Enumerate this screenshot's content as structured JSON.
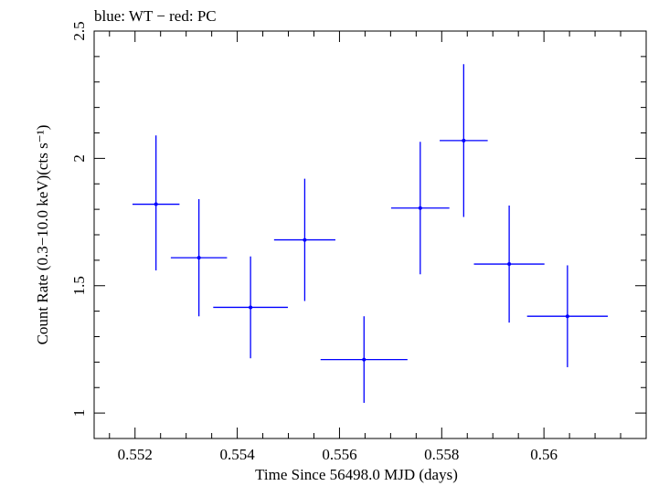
{
  "chart_data": {
    "type": "scatter",
    "title": "blue: WT − red: PC",
    "xlabel": "Time Since 56498.0 MJD (days)",
    "ylabel": "Count Rate (0.3−10.0 keV)(cts s⁻¹)",
    "xlim": [
      0.5512,
      0.562
    ],
    "ylim": [
      0.9,
      2.5
    ],
    "xticks": [
      {
        "value": 0.552,
        "label": "0.552"
      },
      {
        "value": 0.554,
        "label": "0.554"
      },
      {
        "value": 0.556,
        "label": "0.556"
      },
      {
        "value": 0.558,
        "label": "0.558"
      },
      {
        "value": 0.56,
        "label": "0.56"
      }
    ],
    "yticks": [
      {
        "value": 1.0,
        "label": "1"
      },
      {
        "value": 1.5,
        "label": "1.5"
      },
      {
        "value": 2.0,
        "label": "2"
      },
      {
        "value": 2.5,
        "label": "2.5"
      }
    ],
    "grid": false,
    "series": [
      {
        "color": "#0000ff",
        "points": [
          {
            "x": 0.55241,
            "y": 1.82,
            "xerr": 0.00046,
            "yerr_low": 0.26,
            "yerr_high": 0.27
          },
          {
            "x": 0.55325,
            "y": 1.61,
            "xerr": 0.00055,
            "yerr_low": 0.23,
            "yerr_high": 0.23
          },
          {
            "x": 0.55426,
            "y": 1.415,
            "xerr": 0.00073,
            "yerr_low": 0.2,
            "yerr_high": 0.2
          },
          {
            "x": 0.55532,
            "y": 1.68,
            "xerr": 0.0006,
            "yerr_low": 0.24,
            "yerr_high": 0.24
          },
          {
            "x": 0.55648,
            "y": 1.21,
            "xerr": 0.00085,
            "yerr_low": 0.17,
            "yerr_high": 0.17
          },
          {
            "x": 0.55758,
            "y": 1.805,
            "xerr": 0.00057,
            "yerr_low": 0.26,
            "yerr_high": 0.26
          },
          {
            "x": 0.55843,
            "y": 2.07,
            "xerr": 0.00047,
            "yerr_low": 0.3,
            "yerr_high": 0.3
          },
          {
            "x": 0.55932,
            "y": 1.585,
            "xerr": 0.00069,
            "yerr_low": 0.23,
            "yerr_high": 0.23
          },
          {
            "x": 0.56046,
            "y": 1.38,
            "xerr": 0.00079,
            "yerr_low": 0.2,
            "yerr_high": 0.2
          }
        ]
      }
    ]
  }
}
